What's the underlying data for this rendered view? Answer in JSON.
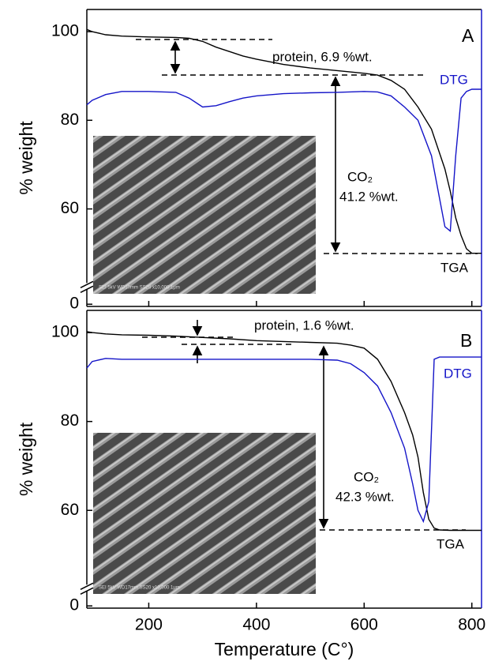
{
  "chart_data": [
    {
      "type": "line",
      "panel_label": "A",
      "ylabel": "% weight",
      "xlim": [
        85,
        818
      ],
      "ylim": [
        -0.5,
        105
      ],
      "ybreak": [
        3,
        41.5
      ],
      "yticks": [
        0,
        60,
        80,
        100
      ],
      "x": [
        85,
        95,
        120,
        150,
        200,
        250,
        275,
        300,
        325,
        350,
        375,
        400,
        450,
        500,
        550,
        600,
        625,
        650,
        675,
        700,
        725,
        750,
        760,
        770,
        780,
        790,
        800,
        818
      ],
      "series": [
        {
          "name": "TGA",
          "color": "#000000",
          "values": [
            100.5,
            100,
            99.3,
            99,
            98.8,
            98.7,
            98.5,
            97.8,
            96.5,
            95.5,
            94.5,
            93.8,
            92.6,
            91.8,
            91.2,
            90.6,
            90.2,
            89,
            87,
            83,
            78,
            69,
            64,
            58,
            54,
            51,
            50,
            50
          ]
        },
        {
          "name": "DTG",
          "color": "#1414c8",
          "values": [
            83.5,
            84.5,
            85.8,
            86.5,
            86.5,
            86.3,
            85,
            83,
            83.3,
            84.2,
            85,
            85.5,
            86,
            86.2,
            86.3,
            86.5,
            86.4,
            85.5,
            83,
            80,
            72,
            56,
            55,
            72,
            85,
            86.5,
            87,
            87
          ]
        }
      ],
      "annotations": {
        "protein": "protein, 6.9 %wt.",
        "co2": "CO₂",
        "co2_amount": "41.2 %wt."
      },
      "sem_caption": "SEI 5kV WD10mm SS28 x10,000 1μm"
    },
    {
      "type": "line",
      "panel_label": "B",
      "ylabel": "% weight",
      "xlabel": "Temperature (C°)",
      "xlim": [
        85,
        818
      ],
      "xticks": [
        200,
        400,
        600,
        800
      ],
      "ylim": [
        -0.5,
        105
      ],
      "ybreak": [
        3,
        41.5
      ],
      "yticks": [
        0,
        60,
        80,
        100
      ],
      "x": [
        85,
        95,
        120,
        150,
        200,
        250,
        300,
        350,
        400,
        450,
        500,
        550,
        575,
        600,
        625,
        650,
        675,
        690,
        700,
        710,
        720,
        730,
        740,
        760,
        790,
        818
      ],
      "series": [
        {
          "name": "TGA",
          "color": "#000000",
          "values": [
            100.2,
            100,
            99.7,
            99.5,
            99.4,
            99.2,
            98.9,
            98.6,
            98.2,
            98,
            97.8,
            97.6,
            97.2,
            96.5,
            94,
            89,
            82,
            77,
            72,
            64,
            58,
            56,
            55.6,
            55.5,
            55.5,
            55.5
          ]
        },
        {
          "name": "DTG",
          "color": "#1414c8",
          "values": [
            92,
            93.5,
            94.2,
            94,
            94,
            94,
            94,
            94,
            94,
            94,
            94,
            93.8,
            93,
            91,
            88,
            82,
            74,
            66,
            60,
            57.5,
            62,
            94,
            94.5,
            94.5,
            94.5,
            94.5
          ]
        }
      ],
      "annotations": {
        "protein": "protein, 1.6 %wt.",
        "co2": "CO₂",
        "co2_amount": "42.3 %wt."
      },
      "sem_caption": "SEI 5kV WD17mm SS20 x10,000 1μm"
    }
  ]
}
